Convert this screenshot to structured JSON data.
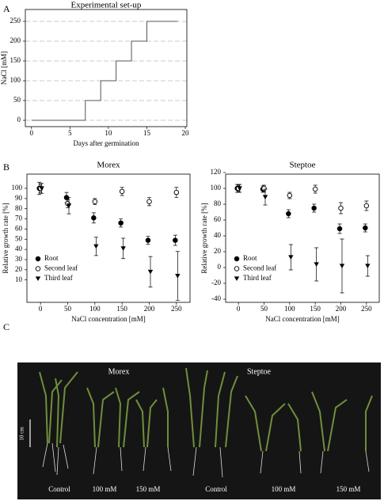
{
  "panels": [
    "A",
    "B",
    "C"
  ],
  "chart_data": [
    {
      "type": "line",
      "title": "Experimental set-up",
      "xlabel": "Days after germination",
      "ylabel": "NaCl [mM]",
      "x": [
        0,
        7,
        7,
        9,
        9,
        11,
        11,
        13,
        13,
        15,
        15,
        19
      ],
      "values": [
        0,
        0,
        50,
        50,
        100,
        100,
        150,
        150,
        200,
        200,
        250,
        250
      ],
      "color": "#555555",
      "xlim": [
        -0.8,
        20.2
      ],
      "ylim": [
        -16,
        280
      ],
      "xticks": [
        0,
        5,
        10,
        15,
        20
      ],
      "yticks": [
        0,
        50,
        100,
        150,
        200,
        250
      ],
      "grid": true
    },
    {
      "type": "scatter",
      "title": "Morex",
      "xlabel": "NaCl concentration [mM]",
      "ylabel": "Relative growth rate [%]",
      "x": [
        0,
        50,
        100,
        150,
        200,
        250
      ],
      "xlim": [
        -25,
        275
      ],
      "ylim": [
        -12,
        114
      ],
      "xticks": [
        0,
        50,
        100,
        150,
        200,
        250
      ],
      "yticks": [
        10,
        20,
        30,
        40,
        50,
        60,
        70,
        80,
        90,
        100
      ],
      "legend": "lower left",
      "series": [
        {
          "name": "Root",
          "marker": "filled-circle",
          "color": "#000000",
          "values": [
            100,
            91,
            71,
            66,
            49,
            49
          ],
          "errors": [
            6,
            5,
            5,
            4,
            4,
            5
          ]
        },
        {
          "name": "Second leaf",
          "marker": "open-circle",
          "color": "#000000",
          "values": [
            100,
            85,
            87,
            97,
            87,
            96
          ],
          "errors": [
            4,
            4,
            3,
            4,
            4,
            5
          ]
        },
        {
          "name": "Third leaf",
          "marker": "triangle-down",
          "color": "#000000",
          "values": [
            100,
            83,
            43,
            41,
            18,
            14
          ],
          "errors": [
            5,
            8,
            9,
            10,
            15,
            24
          ]
        }
      ]
    },
    {
      "type": "scatter",
      "title": "Steptoe",
      "xlabel": "NaCl concentration [mM]",
      "ylabel": "Relative growth rate [%]",
      "x": [
        0,
        50,
        100,
        150,
        200,
        250
      ],
      "xlim": [
        -25,
        275
      ],
      "ylim": [
        -44,
        118
      ],
      "xticks": [
        0,
        50,
        100,
        150,
        200,
        250
      ],
      "yticks": [
        -40,
        -20,
        0,
        20,
        40,
        60,
        80,
        100,
        120
      ],
      "legend": "lower left",
      "series": [
        {
          "name": "Root",
          "marker": "filled-circle",
          "color": "#000000",
          "values": [
            100,
            99,
            68,
            75,
            49,
            50
          ],
          "errors": [
            5,
            4,
            5,
            5,
            6,
            5
          ]
        },
        {
          "name": "Second leaf",
          "marker": "open-circle",
          "color": "#000000",
          "values": [
            100,
            100,
            91,
            99,
            75,
            78
          ],
          "errors": [
            4,
            4,
            4,
            5,
            7,
            6
          ]
        },
        {
          "name": "Third leaf",
          "marker": "triangle-down",
          "color": "#000000",
          "values": [
            100,
            89,
            13,
            4,
            2,
            2
          ],
          "errors": [
            5,
            10,
            16,
            21,
            34,
            13
          ]
        }
      ]
    }
  ],
  "photo": {
    "groups": [
      "Morex",
      "Steptoe"
    ],
    "scale": "10 cm",
    "labels": [
      "Control",
      "100 mM",
      "150 mM",
      "Control",
      "100 mM",
      "150 mM"
    ]
  }
}
